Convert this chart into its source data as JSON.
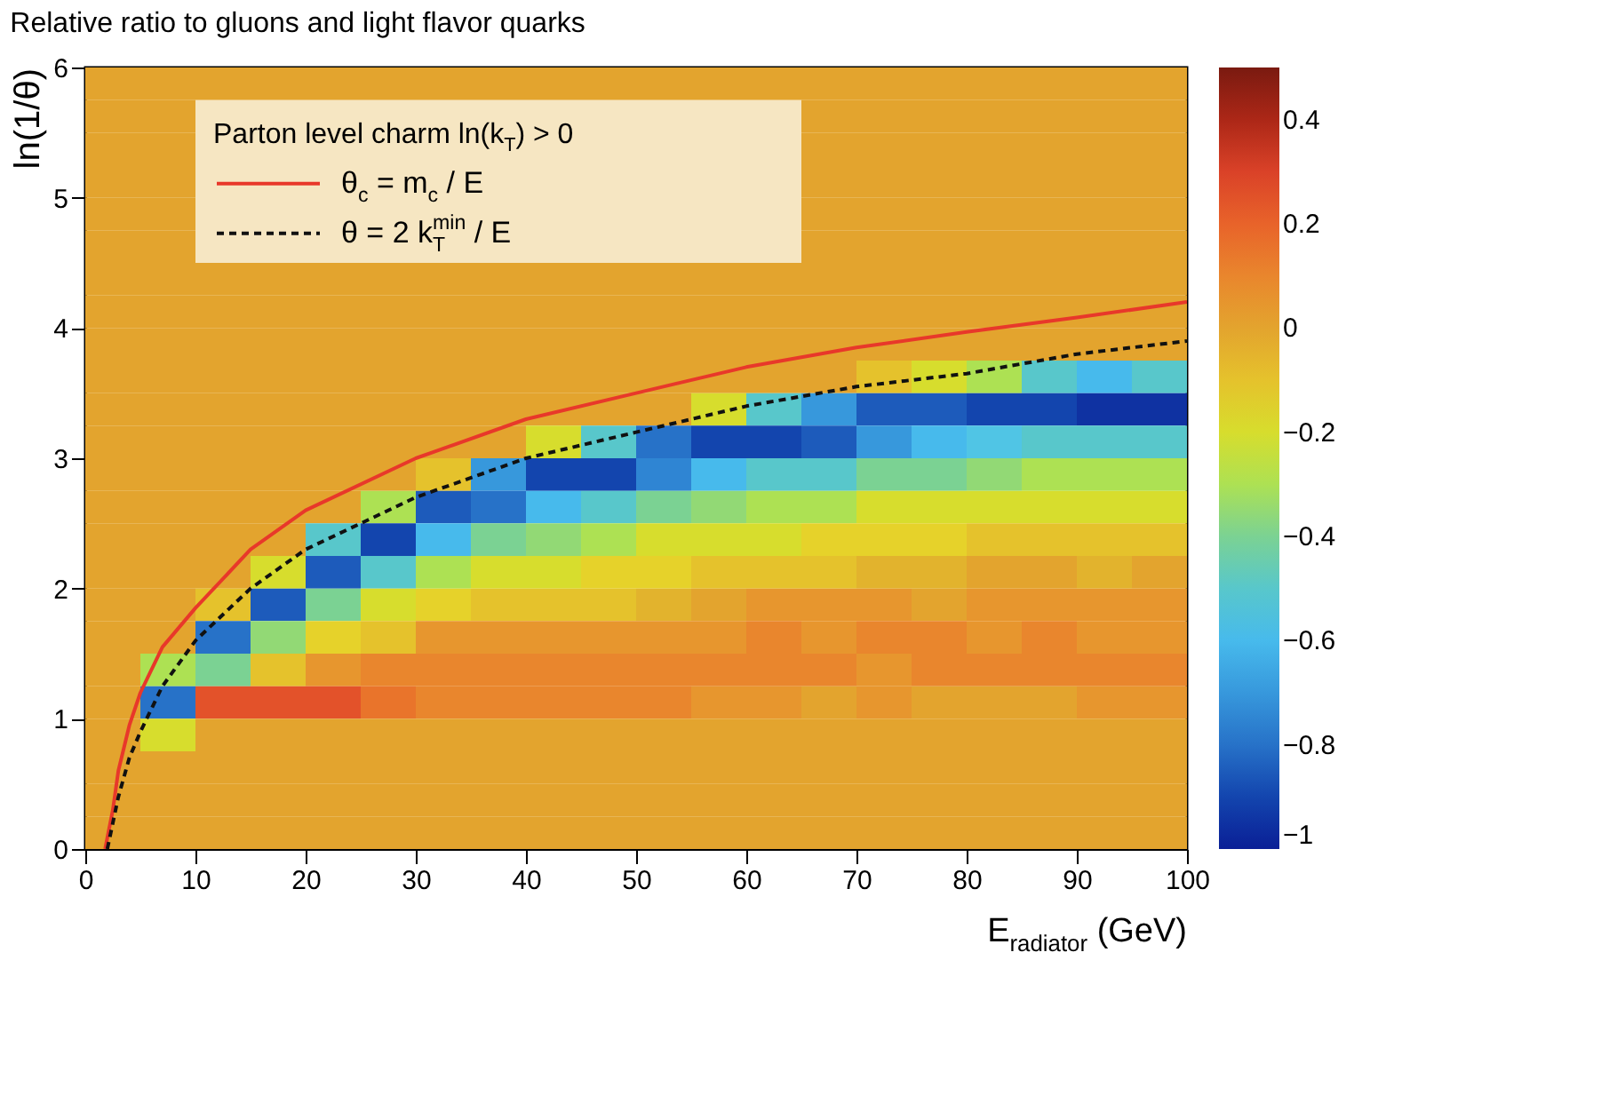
{
  "chart_data": {
    "type": "heatmap",
    "title": "Relative ratio to gluons and light flavor quarks",
    "xlabel": "E$_{radiator}$ (GeV)",
    "ylabel": "ln(1/θ)",
    "legend_title": "Parton level charm ln(k$_{T}$) > 0",
    "legend": "top left",
    "grid": false,
    "x": [
      2.5,
      7.5,
      12.5,
      17.5,
      22.5,
      27.5,
      32.5,
      37.5,
      42.5,
      47.5,
      52.5,
      57.5,
      62.5,
      67.5,
      72.5,
      77.5,
      82.5,
      87.5,
      92.5,
      97.5
    ],
    "cells": [
      [
        0,
        0,
        0,
        0,
        0,
        0,
        0,
        0,
        0,
        0,
        0,
        0,
        0,
        0,
        0,
        0,
        0,
        0,
        0,
        0
      ],
      [
        0,
        0,
        null,
        null,
        null,
        null,
        null,
        null,
        null,
        null,
        null,
        null,
        null,
        0,
        0,
        0,
        0,
        0,
        0,
        0
      ],
      [
        0,
        0,
        null,
        null,
        null,
        null,
        null,
        null,
        null,
        null,
        null,
        null,
        null,
        0,
        0,
        0,
        0,
        0,
        0,
        0
      ],
      [
        0,
        0,
        null,
        null,
        null,
        null,
        null,
        null,
        null,
        null,
        null,
        null,
        null,
        0,
        0,
        0,
        0,
        0,
        0,
        0
      ],
      [
        0,
        0,
        null,
        null,
        null,
        null,
        null,
        null,
        null,
        null,
        null,
        null,
        null,
        0,
        0,
        0,
        0,
        0,
        0,
        0
      ],
      [
        0,
        0,
        null,
        null,
        null,
        null,
        null,
        null,
        null,
        null,
        null,
        null,
        null,
        0,
        0,
        0,
        0,
        0,
        0,
        0
      ],
      [
        0,
        0,
        0,
        0,
        0,
        0,
        0,
        0,
        0,
        0,
        0,
        0,
        0,
        0,
        0,
        0,
        0,
        0,
        0,
        0
      ],
      [
        0,
        0,
        0,
        0,
        0,
        0,
        0,
        0,
        0,
        0,
        0,
        0,
        0,
        0,
        0,
        0,
        0,
        0,
        0,
        0
      ],
      [
        0,
        0,
        0,
        0,
        0,
        0,
        0,
        0,
        0,
        0,
        0,
        0,
        0,
        0,
        0,
        0,
        0,
        0,
        0,
        0
      ],
      [
        0,
        0,
        0,
        0,
        0,
        0,
        0,
        0,
        0,
        0,
        0,
        0,
        0,
        0,
        -0.1,
        -0.2,
        -0.3,
        -0.5,
        -0.6,
        -0.5
      ],
      [
        0,
        0,
        0,
        0,
        0,
        0,
        0,
        0,
        0,
        0,
        0,
        -0.2,
        -0.5,
        -0.7,
        -0.85,
        -0.85,
        -0.9,
        -0.9,
        -0.95,
        -0.95
      ],
      [
        0,
        0,
        0,
        0,
        0,
        0,
        0,
        0,
        -0.2,
        -0.5,
        -0.8,
        -0.9,
        -0.9,
        -0.85,
        -0.7,
        -0.6,
        -0.55,
        -0.5,
        -0.5,
        -0.5
      ],
      [
        0,
        0,
        0,
        0,
        0,
        0,
        -0.1,
        -0.7,
        -0.9,
        -0.9,
        -0.75,
        -0.6,
        -0.5,
        -0.5,
        -0.4,
        -0.4,
        -0.35,
        -0.3,
        -0.3,
        -0.3
      ],
      [
        0,
        0,
        0,
        0,
        0,
        -0.3,
        -0.85,
        -0.8,
        -0.6,
        -0.5,
        -0.4,
        -0.35,
        -0.3,
        -0.3,
        -0.2,
        -0.2,
        -0.2,
        -0.2,
        -0.2,
        -0.2
      ],
      [
        0,
        0,
        0,
        0,
        -0.5,
        -0.9,
        -0.6,
        -0.4,
        -0.35,
        -0.3,
        -0.2,
        -0.2,
        -0.2,
        -0.15,
        -0.15,
        -0.15,
        -0.1,
        -0.1,
        -0.1,
        -0.1
      ],
      [
        0,
        0,
        0,
        -0.2,
        -0.85,
        -0.5,
        -0.3,
        -0.2,
        -0.2,
        -0.15,
        -0.15,
        -0.1,
        -0.1,
        -0.1,
        -0.05,
        -0.05,
        0,
        0,
        -0.05,
        0
      ],
      [
        0,
        0,
        -0.1,
        -0.85,
        -0.4,
        -0.2,
        -0.15,
        -0.1,
        -0.1,
        -0.1,
        -0.05,
        0,
        0.05,
        0.05,
        0.05,
        0,
        0.05,
        0.05,
        0.05,
        0.05
      ],
      [
        0,
        0,
        -0.8,
        -0.35,
        -0.15,
        -0.1,
        0.05,
        0.05,
        0.05,
        0.05,
        0.05,
        0.05,
        0.1,
        0.05,
        0.1,
        0.1,
        0.05,
        0.1,
        0.05,
        0.05
      ],
      [
        0,
        -0.3,
        -0.4,
        -0.1,
        0.05,
        0.1,
        0.1,
        0.1,
        0.1,
        0.1,
        0.1,
        0.1,
        0.1,
        0.1,
        0.05,
        0.1,
        0.1,
        0.1,
        0.1,
        0.1
      ],
      [
        0,
        -0.8,
        0.25,
        0.25,
        0.25,
        0.15,
        0.1,
        0.1,
        0.1,
        0.1,
        0.1,
        0.05,
        0.05,
        0,
        0.05,
        0,
        0,
        0,
        0.05,
        0.05
      ],
      [
        0,
        -0.2,
        0,
        0,
        0,
        0,
        0,
        0,
        0,
        0,
        0,
        0,
        0,
        0,
        0,
        0,
        0,
        0,
        0,
        0
      ],
      [
        0,
        0,
        0,
        0,
        0,
        0,
        0,
        0,
        0,
        0,
        0,
        0,
        0,
        0,
        0,
        0,
        0,
        0,
        0,
        0
      ],
      [
        0,
        0,
        0,
        0,
        0,
        0,
        0,
        0,
        0,
        0,
        0,
        0,
        0,
        0,
        0,
        0,
        0,
        0,
        0,
        0
      ],
      [
        0,
        0,
        0,
        0,
        0,
        0,
        0,
        0,
        0,
        0,
        0,
        0,
        0,
        0,
        0,
        0,
        0,
        0,
        0,
        0
      ]
    ],
    "clim": [
      -1,
      0.5
    ],
    "cticks": [
      -1,
      -0.8,
      -0.6,
      -0.4,
      -0.2,
      0,
      0.2,
      0.4
    ],
    "xlim": [
      0,
      100
    ],
    "xticks": [
      0,
      10,
      20,
      30,
      40,
      50,
      60,
      70,
      80,
      90,
      100
    ],
    "ylim": [
      0,
      6
    ],
    "yticks": [
      0,
      1,
      2,
      3,
      4,
      5,
      6
    ],
    "series": [
      {
        "type": "line",
        "name": "θ$_{c}$ = m$_{c}$ / E",
        "color": "#e8382a",
        "line_style": "solid",
        "x": [
          1.8,
          2.5,
          3,
          4,
          5,
          7,
          10,
          15,
          20,
          30,
          40,
          50,
          60,
          70,
          80,
          90,
          100
        ],
        "values": [
          0,
          0.3,
          0.6,
          0.95,
          1.2,
          1.55,
          1.85,
          2.3,
          2.6,
          3.0,
          3.3,
          3.5,
          3.7,
          3.85,
          3.97,
          4.08,
          4.2
        ]
      },
      {
        "type": "line",
        "name": "θ = 2 k$^{min}$$_{T}$ / E",
        "color": "#111111",
        "line_style": "dashed",
        "x": [
          2,
          3,
          4,
          5,
          7,
          10,
          15,
          20,
          30,
          40,
          50,
          60,
          70,
          80,
          90,
          100
        ],
        "values": [
          0,
          0.4,
          0.7,
          0.9,
          1.25,
          1.6,
          2.0,
          2.3,
          2.7,
          3.0,
          3.2,
          3.4,
          3.55,
          3.65,
          3.8,
          3.9
        ]
      }
    ]
  }
}
